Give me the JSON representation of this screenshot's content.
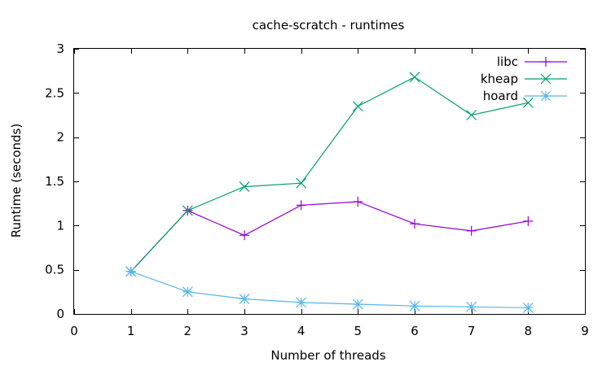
{
  "chart_data": {
    "type": "line",
    "title": "cache-scratch - runtimes",
    "xlabel": "Number of threads",
    "ylabel": "Runtime (seconds)",
    "xlim": [
      0,
      9
    ],
    "ylim": [
      0,
      3
    ],
    "xticks": [
      "0",
      "1",
      "2",
      "3",
      "4",
      "5",
      "6",
      "7",
      "8",
      "9"
    ],
    "yticks": [
      "0",
      "0.5",
      "1",
      "1.5",
      "2",
      "2.5",
      "3"
    ],
    "grid": false,
    "legend_position": "top-right",
    "x": [
      1,
      2,
      3,
      4,
      5,
      6,
      7,
      8
    ],
    "series": [
      {
        "name": "libc",
        "marker": "plus",
        "color": "#9400d3",
        "values": [
          0.48,
          1.17,
          0.89,
          1.23,
          1.27,
          1.02,
          0.94,
          1.05
        ]
      },
      {
        "name": "kheap",
        "marker": "cross",
        "color": "#009e73",
        "values": [
          0.48,
          1.17,
          1.44,
          1.48,
          2.35,
          2.68,
          2.25,
          2.39
        ]
      },
      {
        "name": "hoard",
        "marker": "star",
        "color": "#56b4e9",
        "values": [
          0.48,
          0.25,
          0.17,
          0.13,
          0.11,
          0.09,
          0.08,
          0.07
        ]
      }
    ]
  }
}
